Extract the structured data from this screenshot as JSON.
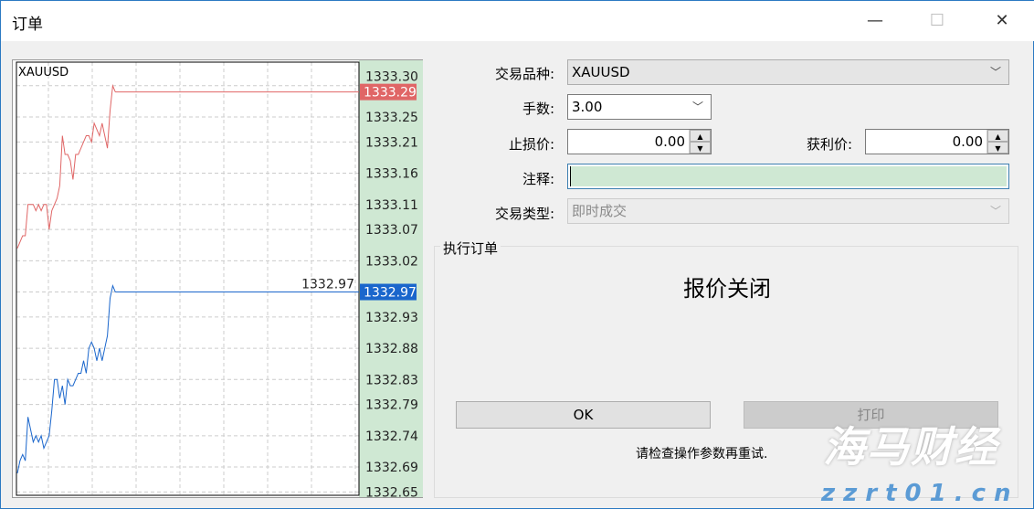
{
  "window": {
    "title": "订单",
    "minimize": "—",
    "maximize": "☐",
    "close": "✕"
  },
  "chart": {
    "symbol": "XAUUSD",
    "ticks": [
      "1333.30",
      "1333.25",
      "1333.21",
      "1333.16",
      "1333.11",
      "1333.07",
      "1333.02",
      "1332.97",
      "1332.93",
      "1332.88",
      "1332.83",
      "1332.79",
      "1332.74",
      "1332.69",
      "1332.65"
    ],
    "ask_label": "1333.29",
    "bid_label": "1332.97",
    "ask_color": "#e06666",
    "bid_color": "#1a66cc",
    "ask": [
      1333.04,
      1333.05,
      1333.06,
      1333.06,
      1333.11,
      1333.11,
      1333.11,
      1333.1,
      1333.11,
      1333.1,
      1333.11,
      1333.11,
      1333.07,
      1333.1,
      1333.11,
      1333.12,
      1333.14,
      1333.22,
      1333.19,
      1333.19,
      1333.18,
      1333.15,
      1333.19,
      1333.19,
      1333.2,
      1333.21,
      1333.22,
      1333.22,
      1333.21,
      1333.24,
      1333.23,
      1333.22,
      1333.24,
      1333.22,
      1333.2,
      1333.26,
      1333.3,
      1333.29
    ],
    "bid": [
      1332.68,
      1332.7,
      1332.71,
      1332.7,
      1332.77,
      1332.75,
      1332.73,
      1332.74,
      1332.73,
      1332.74,
      1332.72,
      1332.73,
      1332.74,
      1332.78,
      1332.83,
      1332.83,
      1332.8,
      1332.82,
      1332.79,
      1332.83,
      1332.82,
      1332.82,
      1332.83,
      1332.84,
      1332.84,
      1332.86,
      1332.84,
      1332.88,
      1332.89,
      1332.88,
      1332.86,
      1332.88,
      1332.86,
      1332.88,
      1332.9,
      1332.96,
      1332.98,
      1332.97
    ]
  },
  "form": {
    "symbol_label": "交易品种:",
    "symbol_value": "XAUUSD",
    "volume_label": "手数:",
    "volume_value": "3.00",
    "sl_label": "止损价:",
    "sl_value": "0.00",
    "tp_label": "获利价:",
    "tp_value": "0.00",
    "comment_label": "注释:",
    "comment_value": "",
    "type_label": "交易类型:",
    "type_value": "即时成交"
  },
  "execution": {
    "group_title": "执行订单",
    "status": "报价关闭",
    "ok": "OK",
    "print": "打印",
    "message": "请检查操作参数再重试."
  },
  "watermark": {
    "text": "海马财经",
    "url": "zzrt01.cn"
  }
}
